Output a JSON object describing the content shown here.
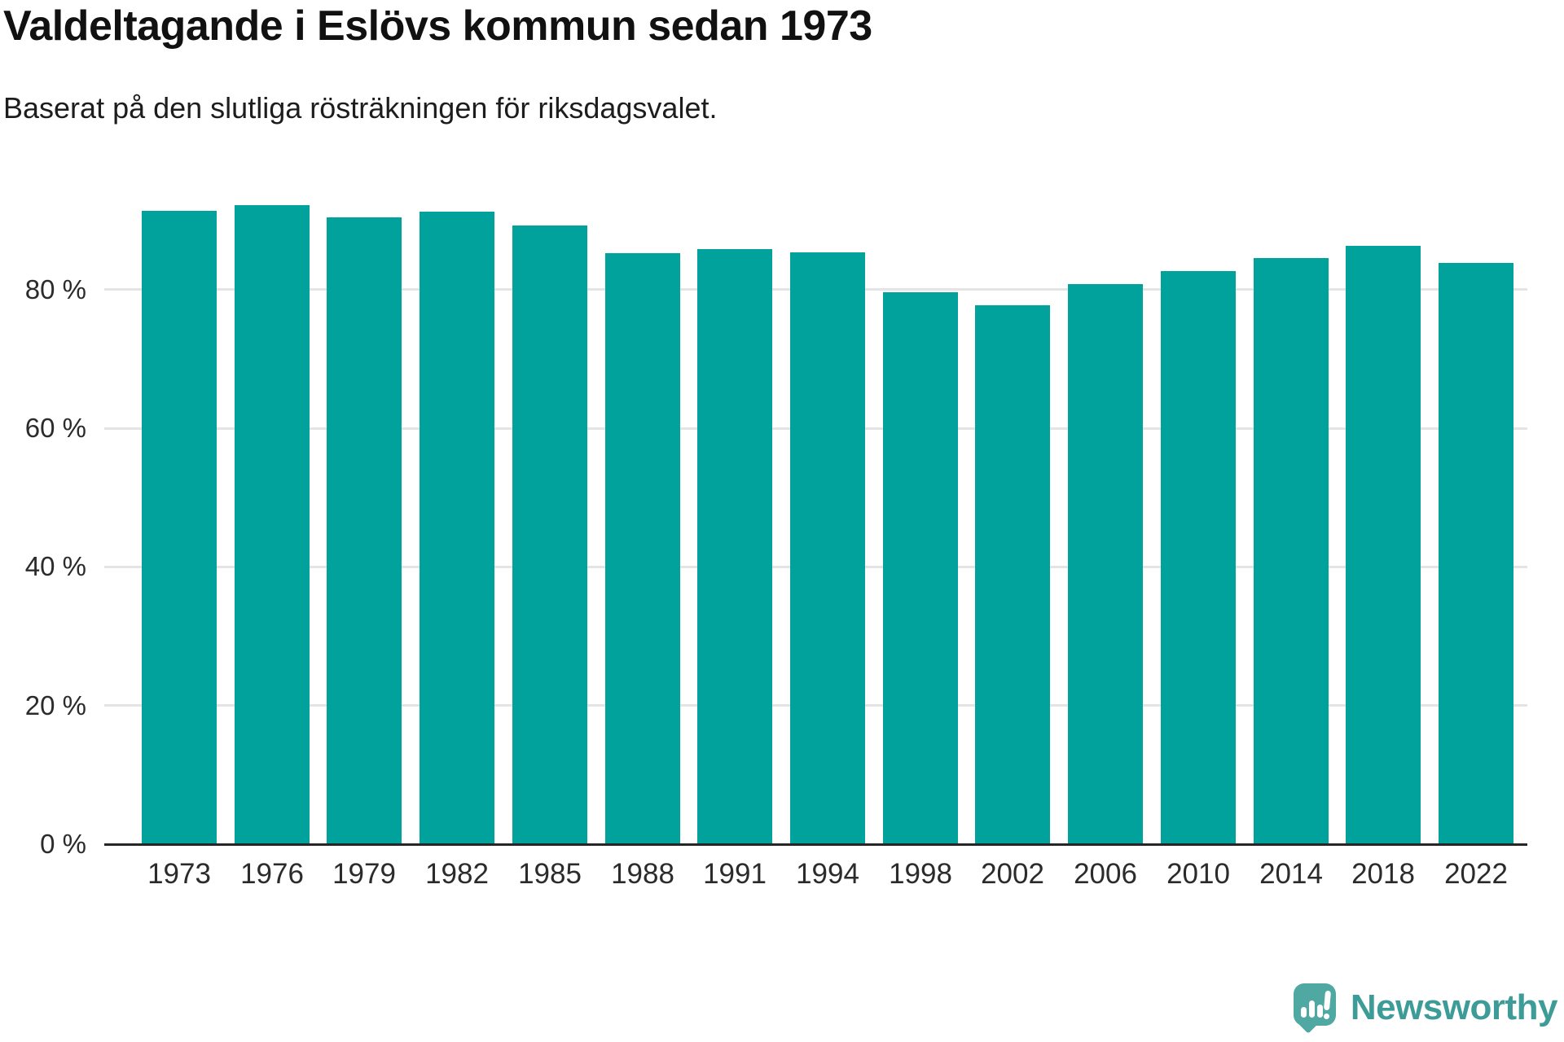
{
  "chart_data": {
    "type": "bar",
    "title": "Valdeltagande i Eslövs kommun sedan 1973",
    "subtitle": "Baserat på den slutliga rösträkningen för riksdagsvalet.",
    "categories": [
      "1973",
      "1976",
      "1979",
      "1982",
      "1985",
      "1988",
      "1991",
      "1994",
      "1998",
      "2002",
      "2006",
      "2010",
      "2014",
      "2018",
      "2022"
    ],
    "values": [
      91.4,
      92.2,
      90.4,
      91.2,
      89.2,
      85.3,
      85.8,
      85.4,
      79.6,
      77.7,
      80.8,
      82.7,
      84.5,
      86.3,
      83.8
    ],
    "unit": "%",
    "ylim": [
      0,
      100
    ],
    "yticks": [
      0,
      20,
      40,
      60,
      80
    ],
    "ytick_suffix": " %",
    "xlabel": "",
    "ylabel": "",
    "grid": true,
    "legend": "none",
    "bar_color": "#00a29b"
  },
  "branding": {
    "wordmark": "Newsworthy",
    "logo_icon": "newsworthy-speech-bubble-chart-icon",
    "wordmark_color": "#3d9c97",
    "icon_color": "#4fa8a2"
  },
  "colors": {
    "background": "#ffffff",
    "bar": "#00a29b",
    "grid": "#e4e4e4",
    "axis": "#262626",
    "tick_text": "#2b2b2b",
    "title_text": "#111111"
  }
}
